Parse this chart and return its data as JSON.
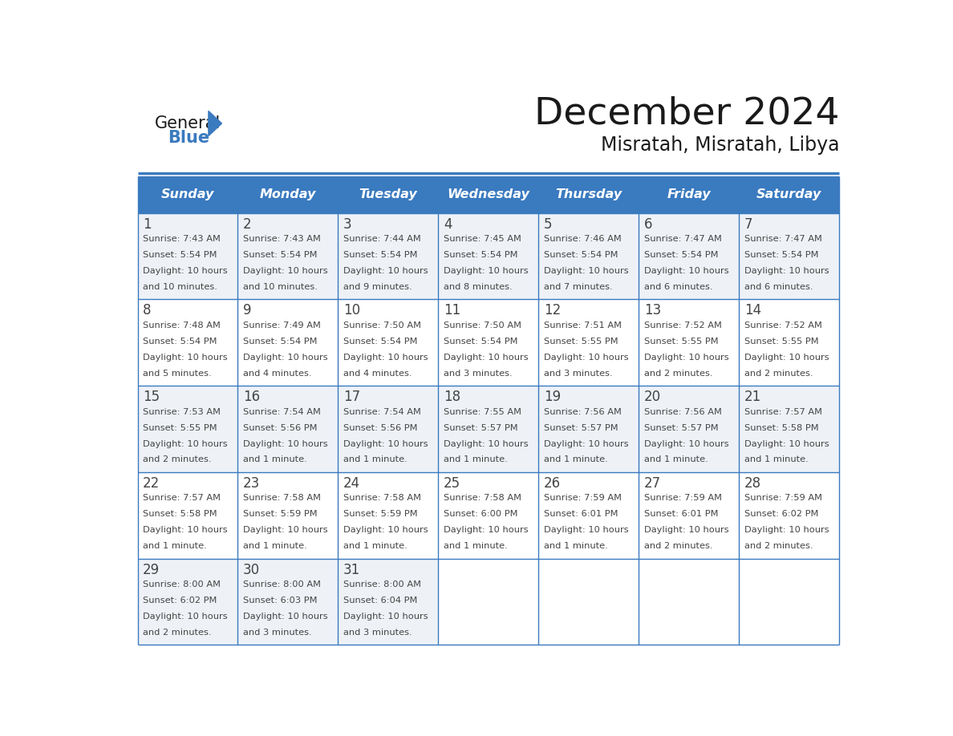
{
  "title": "December 2024",
  "subtitle": "Misratah, Misratah, Libya",
  "header_color": "#3a7abf",
  "header_text_color": "#ffffff",
  "cell_bg_even": "#eef2f7",
  "cell_bg_odd": "#ffffff",
  "border_color": "#3a7abf",
  "title_color": "#1a1a1a",
  "day_names": [
    "Sunday",
    "Monday",
    "Tuesday",
    "Wednesday",
    "Thursday",
    "Friday",
    "Saturday"
  ],
  "days_data": [
    {
      "day": 1,
      "col": 0,
      "row": 0,
      "sunrise": "7:43 AM",
      "sunset": "5:54 PM",
      "daylight_h": "10 hours",
      "daylight_m": "10 minutes."
    },
    {
      "day": 2,
      "col": 1,
      "row": 0,
      "sunrise": "7:43 AM",
      "sunset": "5:54 PM",
      "daylight_h": "10 hours",
      "daylight_m": "10 minutes."
    },
    {
      "day": 3,
      "col": 2,
      "row": 0,
      "sunrise": "7:44 AM",
      "sunset": "5:54 PM",
      "daylight_h": "10 hours",
      "daylight_m": "9 minutes."
    },
    {
      "day": 4,
      "col": 3,
      "row": 0,
      "sunrise": "7:45 AM",
      "sunset": "5:54 PM",
      "daylight_h": "10 hours",
      "daylight_m": "8 minutes."
    },
    {
      "day": 5,
      "col": 4,
      "row": 0,
      "sunrise": "7:46 AM",
      "sunset": "5:54 PM",
      "daylight_h": "10 hours",
      "daylight_m": "7 minutes."
    },
    {
      "day": 6,
      "col": 5,
      "row": 0,
      "sunrise": "7:47 AM",
      "sunset": "5:54 PM",
      "daylight_h": "10 hours",
      "daylight_m": "6 minutes."
    },
    {
      "day": 7,
      "col": 6,
      "row": 0,
      "sunrise": "7:47 AM",
      "sunset": "5:54 PM",
      "daylight_h": "10 hours",
      "daylight_m": "6 minutes."
    },
    {
      "day": 8,
      "col": 0,
      "row": 1,
      "sunrise": "7:48 AM",
      "sunset": "5:54 PM",
      "daylight_h": "10 hours",
      "daylight_m": "5 minutes."
    },
    {
      "day": 9,
      "col": 1,
      "row": 1,
      "sunrise": "7:49 AM",
      "sunset": "5:54 PM",
      "daylight_h": "10 hours",
      "daylight_m": "4 minutes."
    },
    {
      "day": 10,
      "col": 2,
      "row": 1,
      "sunrise": "7:50 AM",
      "sunset": "5:54 PM",
      "daylight_h": "10 hours",
      "daylight_m": "4 minutes."
    },
    {
      "day": 11,
      "col": 3,
      "row": 1,
      "sunrise": "7:50 AM",
      "sunset": "5:54 PM",
      "daylight_h": "10 hours",
      "daylight_m": "3 minutes."
    },
    {
      "day": 12,
      "col": 4,
      "row": 1,
      "sunrise": "7:51 AM",
      "sunset": "5:55 PM",
      "daylight_h": "10 hours",
      "daylight_m": "3 minutes."
    },
    {
      "day": 13,
      "col": 5,
      "row": 1,
      "sunrise": "7:52 AM",
      "sunset": "5:55 PM",
      "daylight_h": "10 hours",
      "daylight_m": "2 minutes."
    },
    {
      "day": 14,
      "col": 6,
      "row": 1,
      "sunrise": "7:52 AM",
      "sunset": "5:55 PM",
      "daylight_h": "10 hours",
      "daylight_m": "2 minutes."
    },
    {
      "day": 15,
      "col": 0,
      "row": 2,
      "sunrise": "7:53 AM",
      "sunset": "5:55 PM",
      "daylight_h": "10 hours",
      "daylight_m": "2 minutes."
    },
    {
      "day": 16,
      "col": 1,
      "row": 2,
      "sunrise": "7:54 AM",
      "sunset": "5:56 PM",
      "daylight_h": "10 hours",
      "daylight_m": "1 minute."
    },
    {
      "day": 17,
      "col": 2,
      "row": 2,
      "sunrise": "7:54 AM",
      "sunset": "5:56 PM",
      "daylight_h": "10 hours",
      "daylight_m": "1 minute."
    },
    {
      "day": 18,
      "col": 3,
      "row": 2,
      "sunrise": "7:55 AM",
      "sunset": "5:57 PM",
      "daylight_h": "10 hours",
      "daylight_m": "1 minute."
    },
    {
      "day": 19,
      "col": 4,
      "row": 2,
      "sunrise": "7:56 AM",
      "sunset": "5:57 PM",
      "daylight_h": "10 hours",
      "daylight_m": "1 minute."
    },
    {
      "day": 20,
      "col": 5,
      "row": 2,
      "sunrise": "7:56 AM",
      "sunset": "5:57 PM",
      "daylight_h": "10 hours",
      "daylight_m": "1 minute."
    },
    {
      "day": 21,
      "col": 6,
      "row": 2,
      "sunrise": "7:57 AM",
      "sunset": "5:58 PM",
      "daylight_h": "10 hours",
      "daylight_m": "1 minute."
    },
    {
      "day": 22,
      "col": 0,
      "row": 3,
      "sunrise": "7:57 AM",
      "sunset": "5:58 PM",
      "daylight_h": "10 hours",
      "daylight_m": "1 minute."
    },
    {
      "day": 23,
      "col": 1,
      "row": 3,
      "sunrise": "7:58 AM",
      "sunset": "5:59 PM",
      "daylight_h": "10 hours",
      "daylight_m": "1 minute."
    },
    {
      "day": 24,
      "col": 2,
      "row": 3,
      "sunrise": "7:58 AM",
      "sunset": "5:59 PM",
      "daylight_h": "10 hours",
      "daylight_m": "1 minute."
    },
    {
      "day": 25,
      "col": 3,
      "row": 3,
      "sunrise": "7:58 AM",
      "sunset": "6:00 PM",
      "daylight_h": "10 hours",
      "daylight_m": "1 minute."
    },
    {
      "day": 26,
      "col": 4,
      "row": 3,
      "sunrise": "7:59 AM",
      "sunset": "6:01 PM",
      "daylight_h": "10 hours",
      "daylight_m": "1 minute."
    },
    {
      "day": 27,
      "col": 5,
      "row": 3,
      "sunrise": "7:59 AM",
      "sunset": "6:01 PM",
      "daylight_h": "10 hours",
      "daylight_m": "2 minutes."
    },
    {
      "day": 28,
      "col": 6,
      "row": 3,
      "sunrise": "7:59 AM",
      "sunset": "6:02 PM",
      "daylight_h": "10 hours",
      "daylight_m": "2 minutes."
    },
    {
      "day": 29,
      "col": 0,
      "row": 4,
      "sunrise": "8:00 AM",
      "sunset": "6:02 PM",
      "daylight_h": "10 hours",
      "daylight_m": "2 minutes."
    },
    {
      "day": 30,
      "col": 1,
      "row": 4,
      "sunrise": "8:00 AM",
      "sunset": "6:03 PM",
      "daylight_h": "10 hours",
      "daylight_m": "3 minutes."
    },
    {
      "day": 31,
      "col": 2,
      "row": 4,
      "sunrise": "8:00 AM",
      "sunset": "6:04 PM",
      "daylight_h": "10 hours",
      "daylight_m": "3 minutes."
    }
  ],
  "num_rows": 5,
  "logo_general_color": "#1a1a1a",
  "logo_blue_color": "#3a7abf",
  "text_color": "#444444"
}
